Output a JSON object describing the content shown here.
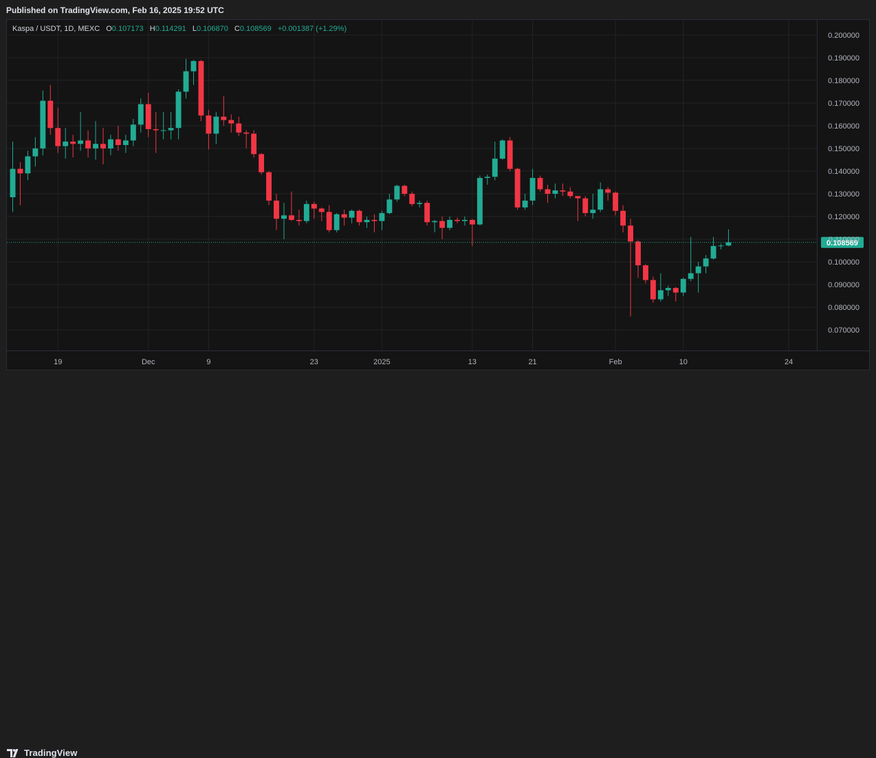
{
  "header": {
    "published": "Published on TradingView.com, Feb 16, 2025 19:52 UTC"
  },
  "footer": {
    "brand": "TradingView"
  },
  "legend": {
    "symbol": "Kaspa / USDT, 1D, MEXC",
    "o_label": "O",
    "o_value": "0.107173",
    "h_label": "H",
    "h_value": "0.114291",
    "l_label": "L",
    "l_value": "0.106870",
    "c_label": "C",
    "c_value": "0.108569",
    "change": "+0.001387 (+1.29%)"
  },
  "colors": {
    "up": "#22ab94",
    "down": "#f23645",
    "grid": "#232323",
    "axis_text": "#b2b5be",
    "price_tag": "#22ab94"
  },
  "chart_data": {
    "type": "candlestick",
    "title": "Kaspa / USDT, 1D, MEXC",
    "x_ticks": [
      "19",
      "Dec",
      "9",
      "23",
      "2025",
      "13",
      "21",
      "Feb",
      "10",
      "24"
    ],
    "x_tick_dates": [
      "2024-11-19",
      "2024-12-01",
      "2024-12-09",
      "2024-12-23",
      "2025-01-01",
      "2025-01-13",
      "2025-01-21",
      "2025-02-01",
      "2025-02-10",
      "2025-02-24"
    ],
    "y_ticks": [
      "0.200000",
      "0.190000",
      "0.180000",
      "0.170000",
      "0.160000",
      "0.150000",
      "0.140000",
      "0.130000",
      "0.120000",
      "0.110000",
      "0.100000",
      "0.090000",
      "0.080000",
      "0.070000"
    ],
    "ylim": [
      0.0655,
      0.2045
    ],
    "xlim": [
      "2024-11-13",
      "2025-02-27"
    ],
    "last_price": 0.108569,
    "last_price_label": "0.108569",
    "grid": true,
    "candles": [
      {
        "t": "2024-11-13",
        "o": 0.1285,
        "h": 0.153,
        "l": 0.122,
        "c": 0.141
      },
      {
        "t": "2024-11-14",
        "o": 0.141,
        "h": 0.144,
        "l": 0.125,
        "c": 0.139
      },
      {
        "t": "2024-11-15",
        "o": 0.139,
        "h": 0.149,
        "l": 0.136,
        "c": 0.1465
      },
      {
        "t": "2024-11-16",
        "o": 0.1465,
        "h": 0.155,
        "l": 0.142,
        "c": 0.15
      },
      {
        "t": "2024-11-17",
        "o": 0.15,
        "h": 0.1755,
        "l": 0.147,
        "c": 0.171
      },
      {
        "t": "2024-11-18",
        "o": 0.171,
        "h": 0.178,
        "l": 0.156,
        "c": 0.159
      },
      {
        "t": "2024-11-19",
        "o": 0.159,
        "h": 0.168,
        "l": 0.148,
        "c": 0.151
      },
      {
        "t": "2024-11-20",
        "o": 0.151,
        "h": 0.159,
        "l": 0.1455,
        "c": 0.153
      },
      {
        "t": "2024-11-21",
        "o": 0.153,
        "h": 0.156,
        "l": 0.146,
        "c": 0.152
      },
      {
        "t": "2024-11-22",
        "o": 0.152,
        "h": 0.166,
        "l": 0.149,
        "c": 0.1535
      },
      {
        "t": "2024-11-23",
        "o": 0.1535,
        "h": 0.158,
        "l": 0.146,
        "c": 0.15
      },
      {
        "t": "2024-11-24",
        "o": 0.15,
        "h": 0.162,
        "l": 0.145,
        "c": 0.152
      },
      {
        "t": "2024-11-25",
        "o": 0.152,
        "h": 0.159,
        "l": 0.143,
        "c": 0.15
      },
      {
        "t": "2024-11-26",
        "o": 0.15,
        "h": 0.156,
        "l": 0.147,
        "c": 0.154
      },
      {
        "t": "2024-11-27",
        "o": 0.154,
        "h": 0.16,
        "l": 0.149,
        "c": 0.1515
      },
      {
        "t": "2024-11-28",
        "o": 0.1515,
        "h": 0.156,
        "l": 0.148,
        "c": 0.1535
      },
      {
        "t": "2024-11-29",
        "o": 0.1535,
        "h": 0.163,
        "l": 0.151,
        "c": 0.1605
      },
      {
        "t": "2024-11-30",
        "o": 0.1605,
        "h": 0.172,
        "l": 0.157,
        "c": 0.1695
      },
      {
        "t": "2024-12-01",
        "o": 0.1695,
        "h": 0.1745,
        "l": 0.155,
        "c": 0.1585
      },
      {
        "t": "2024-12-02",
        "o": 0.1585,
        "h": 0.166,
        "l": 0.148,
        "c": 0.158
      },
      {
        "t": "2024-12-03",
        "o": 0.158,
        "h": 0.166,
        "l": 0.154,
        "c": 0.158
      },
      {
        "t": "2024-12-04",
        "o": 0.158,
        "h": 0.166,
        "l": 0.154,
        "c": 0.159
      },
      {
        "t": "2024-12-05",
        "o": 0.159,
        "h": 0.176,
        "l": 0.154,
        "c": 0.175
      },
      {
        "t": "2024-12-06",
        "o": 0.175,
        "h": 0.1895,
        "l": 0.172,
        "c": 0.184
      },
      {
        "t": "2024-12-07",
        "o": 0.184,
        "h": 0.189,
        "l": 0.178,
        "c": 0.1885
      },
      {
        "t": "2024-12-08",
        "o": 0.1885,
        "h": 0.189,
        "l": 0.162,
        "c": 0.1645
      },
      {
        "t": "2024-12-09",
        "o": 0.1645,
        "h": 0.167,
        "l": 0.1495,
        "c": 0.1565
      },
      {
        "t": "2024-12-10",
        "o": 0.1565,
        "h": 0.166,
        "l": 0.152,
        "c": 0.164
      },
      {
        "t": "2024-12-11",
        "o": 0.164,
        "h": 0.173,
        "l": 0.16,
        "c": 0.1625
      },
      {
        "t": "2024-12-12",
        "o": 0.1625,
        "h": 0.165,
        "l": 0.157,
        "c": 0.161
      },
      {
        "t": "2024-12-13",
        "o": 0.161,
        "h": 0.164,
        "l": 0.1555,
        "c": 0.157
      },
      {
        "t": "2024-12-14",
        "o": 0.157,
        "h": 0.158,
        "l": 0.15,
        "c": 0.1565
      },
      {
        "t": "2024-12-15",
        "o": 0.1565,
        "h": 0.158,
        "l": 0.146,
        "c": 0.1475
      },
      {
        "t": "2024-12-16",
        "o": 0.1475,
        "h": 0.148,
        "l": 0.1385,
        "c": 0.1395
      },
      {
        "t": "2024-12-17",
        "o": 0.1395,
        "h": 0.14,
        "l": 0.125,
        "c": 0.127
      },
      {
        "t": "2024-12-18",
        "o": 0.127,
        "h": 0.13,
        "l": 0.114,
        "c": 0.119
      },
      {
        "t": "2024-12-19",
        "o": 0.119,
        "h": 0.126,
        "l": 0.11,
        "c": 0.1205
      },
      {
        "t": "2024-12-20",
        "o": 0.1205,
        "h": 0.131,
        "l": 0.118,
        "c": 0.1185
      },
      {
        "t": "2024-12-21",
        "o": 0.1185,
        "h": 0.123,
        "l": 0.116,
        "c": 0.118
      },
      {
        "t": "2024-12-22",
        "o": 0.118,
        "h": 0.127,
        "l": 0.117,
        "c": 0.1255
      },
      {
        "t": "2024-12-23",
        "o": 0.1255,
        "h": 0.1265,
        "l": 0.119,
        "c": 0.1235
      },
      {
        "t": "2024-12-24",
        "o": 0.1235,
        "h": 0.124,
        "l": 0.118,
        "c": 0.122
      },
      {
        "t": "2024-12-25",
        "o": 0.122,
        "h": 0.125,
        "l": 0.113,
        "c": 0.114
      },
      {
        "t": "2024-12-26",
        "o": 0.114,
        "h": 0.1215,
        "l": 0.113,
        "c": 0.121
      },
      {
        "t": "2024-12-27",
        "o": 0.121,
        "h": 0.123,
        "l": 0.116,
        "c": 0.1195
      },
      {
        "t": "2024-12-28",
        "o": 0.1195,
        "h": 0.123,
        "l": 0.117,
        "c": 0.1225
      },
      {
        "t": "2024-12-29",
        "o": 0.1225,
        "h": 0.123,
        "l": 0.116,
        "c": 0.1175
      },
      {
        "t": "2024-12-30",
        "o": 0.1175,
        "h": 0.12,
        "l": 0.115,
        "c": 0.1185
      },
      {
        "t": "2024-12-31",
        "o": 0.1185,
        "h": 0.121,
        "l": 0.113,
        "c": 0.118
      },
      {
        "t": "2025-01-01",
        "o": 0.118,
        "h": 0.1225,
        "l": 0.114,
        "c": 0.1215
      },
      {
        "t": "2025-01-02",
        "o": 0.1215,
        "h": 0.13,
        "l": 0.121,
        "c": 0.1275
      },
      {
        "t": "2025-01-03",
        "o": 0.1275,
        "h": 0.134,
        "l": 0.1265,
        "c": 0.1335
      },
      {
        "t": "2025-01-04",
        "o": 0.1335,
        "h": 0.134,
        "l": 0.129,
        "c": 0.13
      },
      {
        "t": "2025-01-05",
        "o": 0.13,
        "h": 0.131,
        "l": 0.1245,
        "c": 0.1255
      },
      {
        "t": "2025-01-06",
        "o": 0.1255,
        "h": 0.127,
        "l": 0.124,
        "c": 0.126
      },
      {
        "t": "2025-01-07",
        "o": 0.126,
        "h": 0.127,
        "l": 0.116,
        "c": 0.1175
      },
      {
        "t": "2025-01-08",
        "o": 0.1175,
        "h": 0.1185,
        "l": 0.113,
        "c": 0.118
      },
      {
        "t": "2025-01-09",
        "o": 0.118,
        "h": 0.12,
        "l": 0.11,
        "c": 0.115
      },
      {
        "t": "2025-01-10",
        "o": 0.115,
        "h": 0.12,
        "l": 0.114,
        "c": 0.1185
      },
      {
        "t": "2025-01-11",
        "o": 0.1185,
        "h": 0.1195,
        "l": 0.117,
        "c": 0.118
      },
      {
        "t": "2025-01-12",
        "o": 0.118,
        "h": 0.12,
        "l": 0.116,
        "c": 0.1185
      },
      {
        "t": "2025-01-13",
        "o": 0.1185,
        "h": 0.119,
        "l": 0.107,
        "c": 0.1165
      },
      {
        "t": "2025-01-14",
        "o": 0.1165,
        "h": 0.138,
        "l": 0.116,
        "c": 0.137
      },
      {
        "t": "2025-01-15",
        "o": 0.137,
        "h": 0.1385,
        "l": 0.134,
        "c": 0.1375
      },
      {
        "t": "2025-01-16",
        "o": 0.1375,
        "h": 0.153,
        "l": 0.136,
        "c": 0.1455
      },
      {
        "t": "2025-01-17",
        "o": 0.1455,
        "h": 0.154,
        "l": 0.145,
        "c": 0.1535
      },
      {
        "t": "2025-01-18",
        "o": 0.1535,
        "h": 0.155,
        "l": 0.14,
        "c": 0.141
      },
      {
        "t": "2025-01-19",
        "o": 0.141,
        "h": 0.1415,
        "l": 0.123,
        "c": 0.124
      },
      {
        "t": "2025-01-20",
        "o": 0.124,
        "h": 0.13,
        "l": 0.123,
        "c": 0.127
      },
      {
        "t": "2025-01-21",
        "o": 0.127,
        "h": 0.141,
        "l": 0.125,
        "c": 0.137
      },
      {
        "t": "2025-01-22",
        "o": 0.137,
        "h": 0.138,
        "l": 0.131,
        "c": 0.132
      },
      {
        "t": "2025-01-23",
        "o": 0.132,
        "h": 0.134,
        "l": 0.126,
        "c": 0.13
      },
      {
        "t": "2025-01-24",
        "o": 0.13,
        "h": 0.1345,
        "l": 0.128,
        "c": 0.1315
      },
      {
        "t": "2025-01-25",
        "o": 0.1315,
        "h": 0.1345,
        "l": 0.129,
        "c": 0.131
      },
      {
        "t": "2025-01-26",
        "o": 0.131,
        "h": 0.133,
        "l": 0.128,
        "c": 0.129
      },
      {
        "t": "2025-01-27",
        "o": 0.129,
        "h": 0.129,
        "l": 0.118,
        "c": 0.128
      },
      {
        "t": "2025-01-28",
        "o": 0.128,
        "h": 0.129,
        "l": 0.12,
        "c": 0.1215
      },
      {
        "t": "2025-01-29",
        "o": 0.1215,
        "h": 0.13,
        "l": 0.119,
        "c": 0.123
      },
      {
        "t": "2025-01-30",
        "o": 0.123,
        "h": 0.135,
        "l": 0.122,
        "c": 0.132
      },
      {
        "t": "2025-01-31",
        "o": 0.132,
        "h": 0.133,
        "l": 0.127,
        "c": 0.1305
      },
      {
        "t": "2025-02-01",
        "o": 0.1305,
        "h": 0.131,
        "l": 0.1205,
        "c": 0.1225
      },
      {
        "t": "2025-02-02",
        "o": 0.1225,
        "h": 0.125,
        "l": 0.113,
        "c": 0.116
      },
      {
        "t": "2025-02-03",
        "o": 0.116,
        "h": 0.119,
        "l": 0.076,
        "c": 0.109
      },
      {
        "t": "2025-02-04",
        "o": 0.109,
        "h": 0.1095,
        "l": 0.093,
        "c": 0.0985
      },
      {
        "t": "2025-02-05",
        "o": 0.0985,
        "h": 0.099,
        "l": 0.0905,
        "c": 0.092
      },
      {
        "t": "2025-02-06",
        "o": 0.092,
        "h": 0.0935,
        "l": 0.082,
        "c": 0.0835
      },
      {
        "t": "2025-02-07",
        "o": 0.0835,
        "h": 0.095,
        "l": 0.0825,
        "c": 0.0875
      },
      {
        "t": "2025-02-08",
        "o": 0.0875,
        "h": 0.0895,
        "l": 0.085,
        "c": 0.0885
      },
      {
        "t": "2025-02-09",
        "o": 0.0885,
        "h": 0.089,
        "l": 0.0825,
        "c": 0.0865
      },
      {
        "t": "2025-02-10",
        "o": 0.0865,
        "h": 0.093,
        "l": 0.085,
        "c": 0.0925
      },
      {
        "t": "2025-02-11",
        "o": 0.0925,
        "h": 0.111,
        "l": 0.0915,
        "c": 0.095
      },
      {
        "t": "2025-02-12",
        "o": 0.095,
        "h": 0.1,
        "l": 0.0865,
        "c": 0.098
      },
      {
        "t": "2025-02-13",
        "o": 0.098,
        "h": 0.103,
        "l": 0.095,
        "c": 0.1015
      },
      {
        "t": "2025-02-14",
        "o": 0.1015,
        "h": 0.111,
        "l": 0.101,
        "c": 0.107
      },
      {
        "t": "2025-02-15",
        "o": 0.107,
        "h": 0.108,
        "l": 0.1055,
        "c": 0.1072
      },
      {
        "t": "2025-02-16",
        "o": 0.1072,
        "h": 0.1143,
        "l": 0.1069,
        "c": 0.1086
      }
    ]
  }
}
